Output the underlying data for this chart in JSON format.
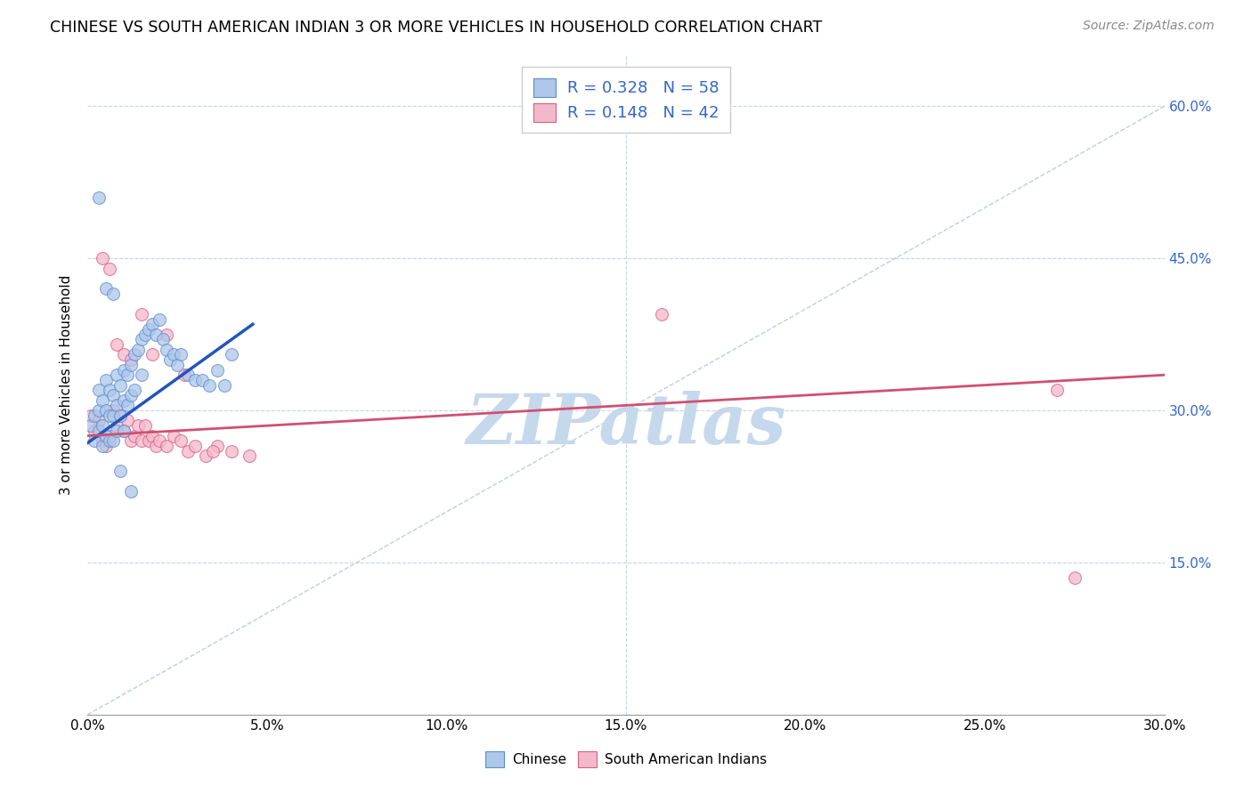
{
  "title": "CHINESE VS SOUTH AMERICAN INDIAN 3 OR MORE VEHICLES IN HOUSEHOLD CORRELATION CHART",
  "source": "Source: ZipAtlas.com",
  "ylabel": "3 or more Vehicles in Household",
  "xlim": [
    0.0,
    0.3
  ],
  "ylim": [
    0.0,
    0.65
  ],
  "xtick_labels": [
    "0.0%",
    "5.0%",
    "10.0%",
    "15.0%",
    "20.0%",
    "25.0%",
    "30.0%"
  ],
  "xtick_values": [
    0.0,
    0.05,
    0.1,
    0.15,
    0.2,
    0.25,
    0.3
  ],
  "ytick_labels": [
    "15.0%",
    "30.0%",
    "45.0%",
    "60.0%"
  ],
  "ytick_values": [
    0.15,
    0.3,
    0.45,
    0.6
  ],
  "chinese_fill": "#aec6e8",
  "chinese_edge": "#5b8fd4",
  "sa_fill": "#f4b8cc",
  "sa_edge": "#d96080",
  "chinese_line_color": "#2255bb",
  "sa_line_color": "#d05070",
  "diag_line_color": "#b8c8d8",
  "watermark": "ZIPatlas",
  "watermark_color": "#c5d8ec",
  "legend_text_color": "#3366cc",
  "chinese_x": [
    0.001,
    0.002,
    0.002,
    0.003,
    0.003,
    0.003,
    0.004,
    0.004,
    0.004,
    0.005,
    0.005,
    0.005,
    0.006,
    0.006,
    0.006,
    0.007,
    0.007,
    0.007,
    0.008,
    0.008,
    0.008,
    0.009,
    0.009,
    0.01,
    0.01,
    0.01,
    0.011,
    0.011,
    0.012,
    0.012,
    0.013,
    0.013,
    0.014,
    0.015,
    0.015,
    0.016,
    0.017,
    0.018,
    0.019,
    0.02,
    0.021,
    0.022,
    0.023,
    0.024,
    0.025,
    0.026,
    0.028,
    0.03,
    0.032,
    0.034,
    0.036,
    0.038,
    0.04,
    0.003,
    0.005,
    0.007,
    0.009,
    0.012
  ],
  "chinese_y": [
    0.285,
    0.295,
    0.27,
    0.32,
    0.3,
    0.28,
    0.31,
    0.285,
    0.265,
    0.33,
    0.3,
    0.275,
    0.32,
    0.295,
    0.27,
    0.315,
    0.295,
    0.27,
    0.335,
    0.305,
    0.28,
    0.325,
    0.295,
    0.34,
    0.31,
    0.28,
    0.335,
    0.305,
    0.345,
    0.315,
    0.355,
    0.32,
    0.36,
    0.37,
    0.335,
    0.375,
    0.38,
    0.385,
    0.375,
    0.39,
    0.37,
    0.36,
    0.35,
    0.355,
    0.345,
    0.355,
    0.335,
    0.33,
    0.33,
    0.325,
    0.34,
    0.325,
    0.355,
    0.51,
    0.42,
    0.415,
    0.24,
    0.22
  ],
  "sa_x": [
    0.001,
    0.002,
    0.003,
    0.004,
    0.005,
    0.006,
    0.007,
    0.008,
    0.009,
    0.01,
    0.011,
    0.012,
    0.013,
    0.014,
    0.015,
    0.016,
    0.017,
    0.018,
    0.019,
    0.02,
    0.022,
    0.024,
    0.026,
    0.028,
    0.03,
    0.033,
    0.036,
    0.04,
    0.045,
    0.004,
    0.006,
    0.008,
    0.01,
    0.012,
    0.015,
    0.018,
    0.022,
    0.027,
    0.035,
    0.16,
    0.27,
    0.275
  ],
  "sa_y": [
    0.295,
    0.28,
    0.29,
    0.27,
    0.265,
    0.275,
    0.3,
    0.285,
    0.295,
    0.28,
    0.29,
    0.27,
    0.275,
    0.285,
    0.27,
    0.285,
    0.27,
    0.275,
    0.265,
    0.27,
    0.265,
    0.275,
    0.27,
    0.26,
    0.265,
    0.255,
    0.265,
    0.26,
    0.255,
    0.45,
    0.44,
    0.365,
    0.355,
    0.35,
    0.395,
    0.355,
    0.375,
    0.335,
    0.26,
    0.395,
    0.32,
    0.135
  ],
  "chinese_trend_x": [
    0.0,
    0.046
  ],
  "chinese_trend_y": [
    0.268,
    0.385
  ],
  "sa_trend_x": [
    0.0,
    0.3
  ],
  "sa_trend_y": [
    0.275,
    0.335
  ]
}
